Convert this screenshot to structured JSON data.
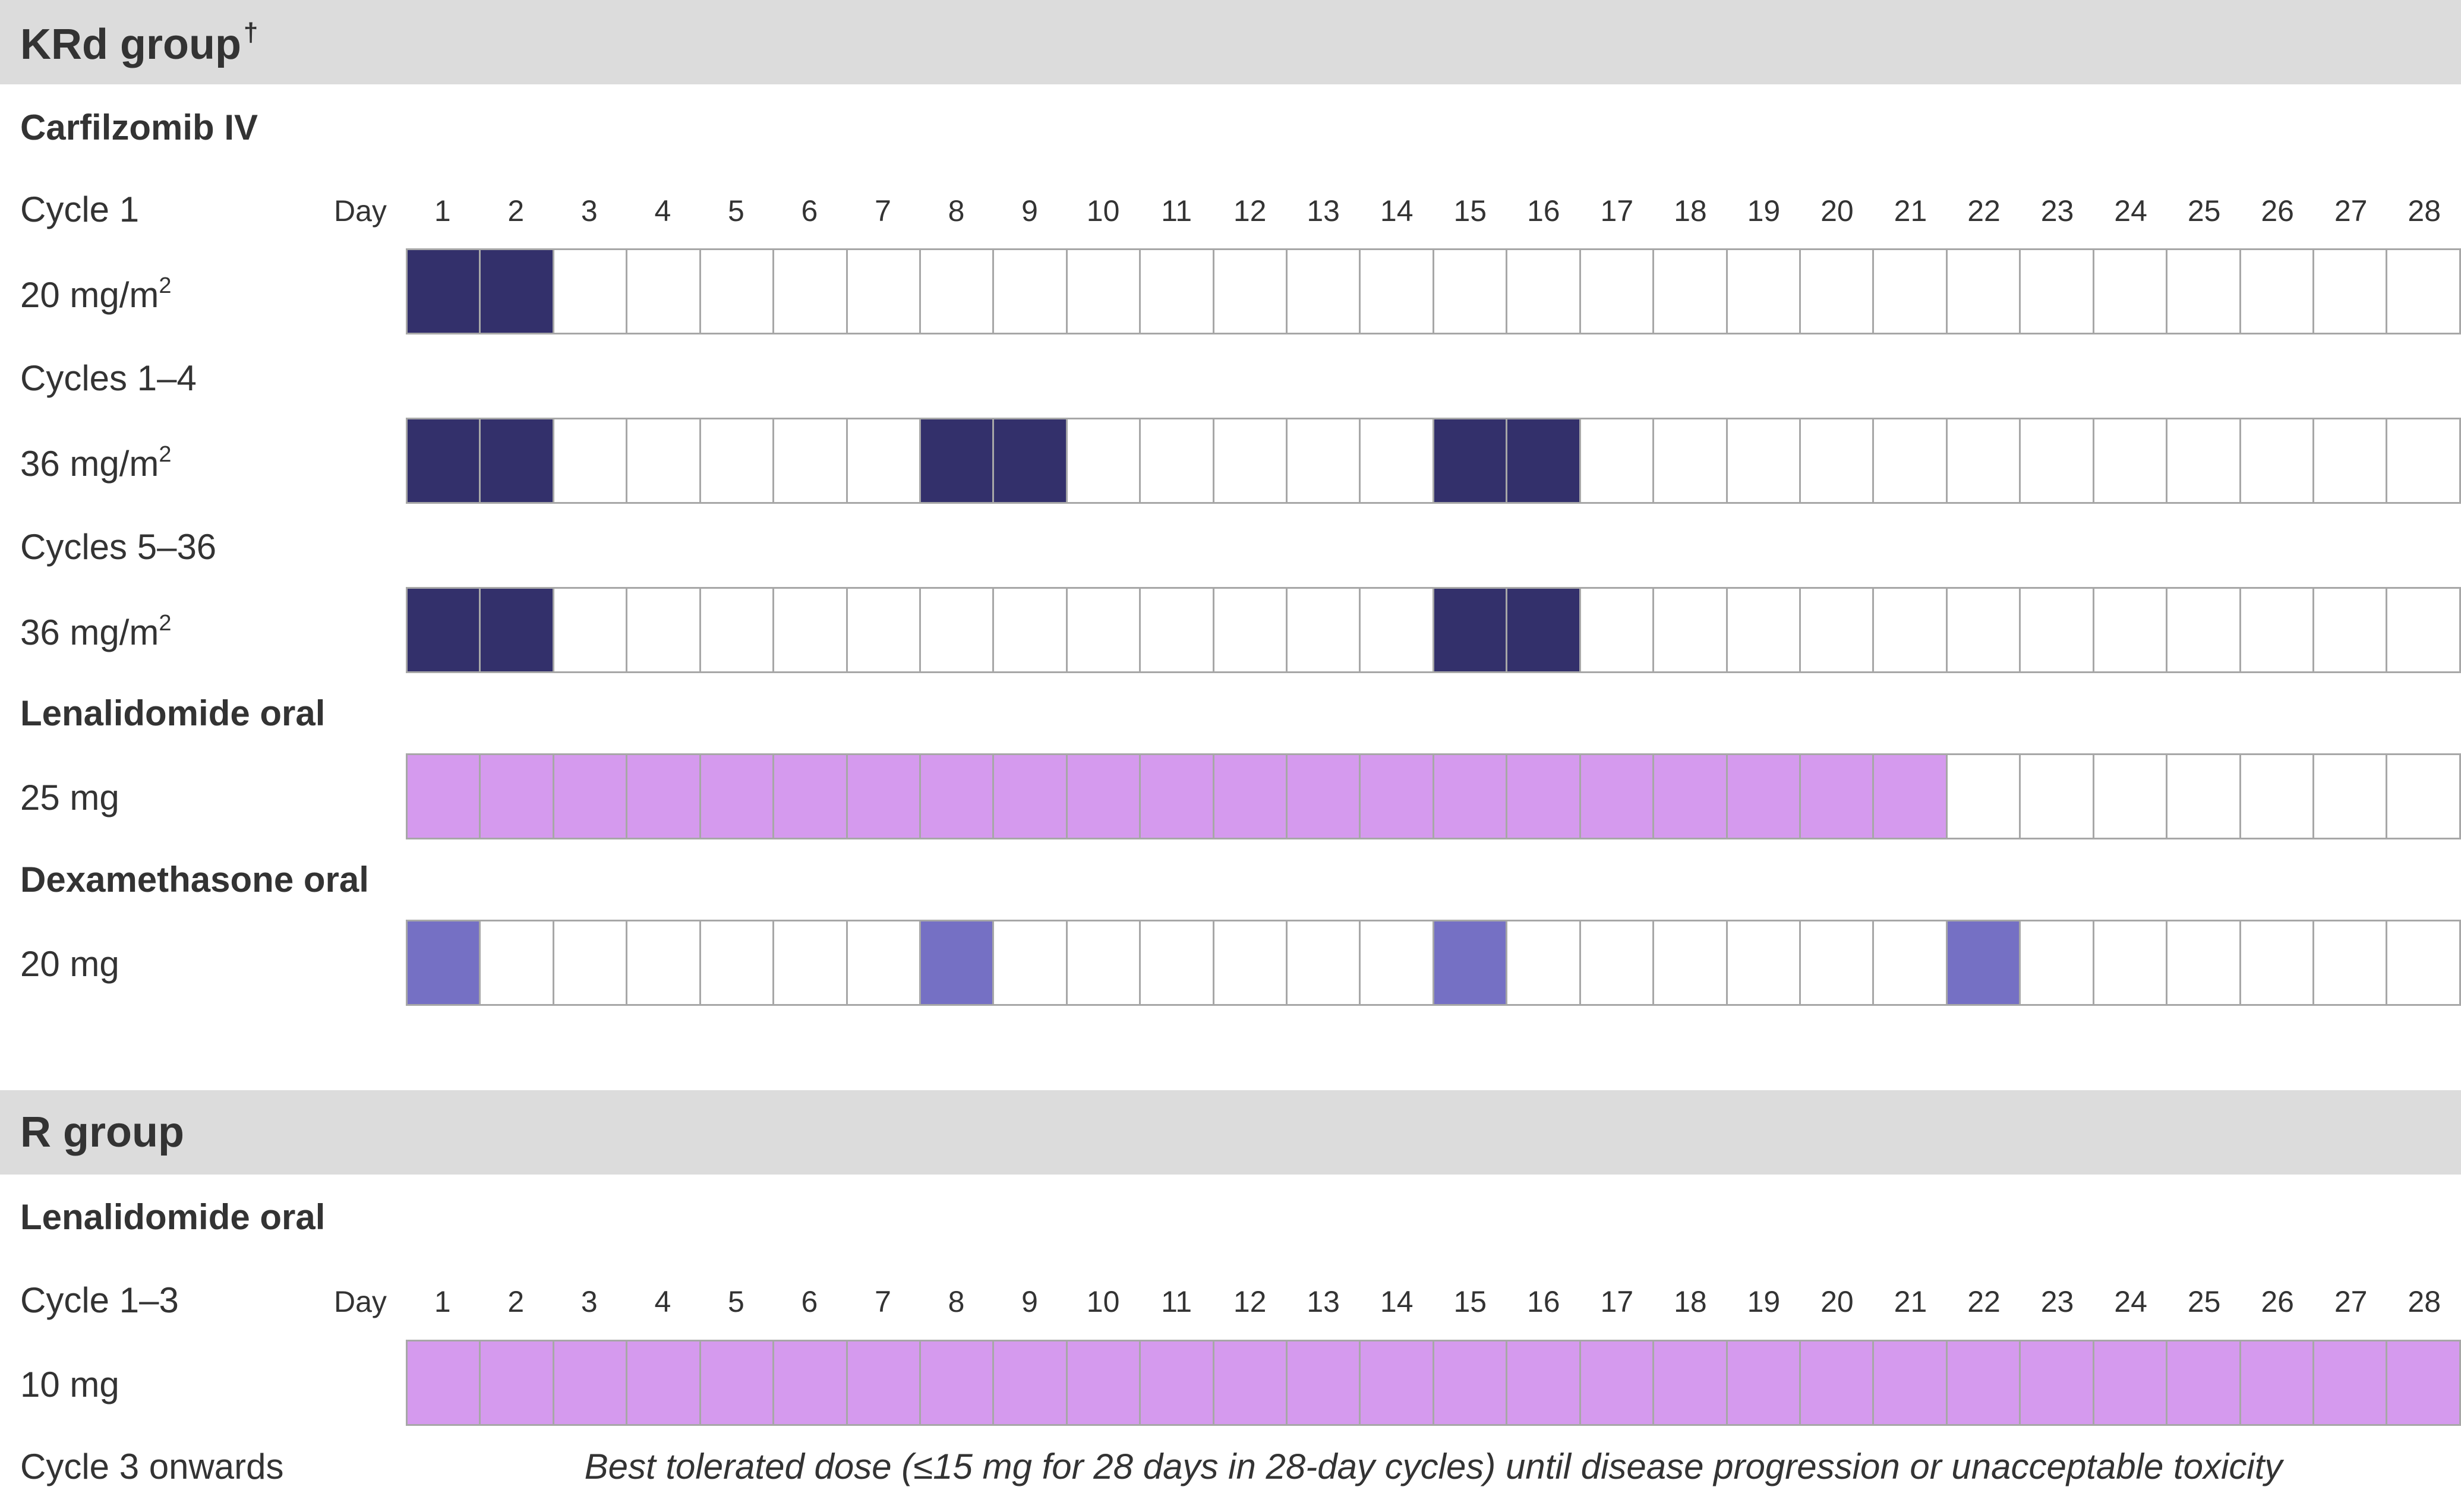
{
  "colors": {
    "band": "#dcdcdc",
    "text": "#333333",
    "carfilzomib": "#33306b",
    "lenalidomide": "#d59aee",
    "dexamethasone": "#7570c4",
    "empty": "#ffffff",
    "border": "#a7a7a7"
  },
  "day_label": "Day",
  "krd": {
    "title": "KRd group",
    "title_mark": "†",
    "carfilzomib": {
      "heading": "Carfilzomib IV",
      "cycle1": {
        "cycle": "Cycle 1",
        "dose": "20 mg/m",
        "sup": "2",
        "days": [
          1,
          2
        ]
      },
      "cycles1_4": {
        "cycle": "Cycles 1–4",
        "dose": "36 mg/m",
        "sup": "2",
        "days": [
          1,
          2,
          8,
          9,
          15,
          16
        ]
      },
      "cycles5_36": {
        "cycle": "Cycles 5–36",
        "dose": "36 mg/m",
        "sup": "2",
        "days": [
          1,
          2,
          15,
          16
        ]
      }
    },
    "lenalidomide": {
      "heading": "Lenalidomide oral",
      "dose": "25 mg",
      "days": [
        1,
        2,
        3,
        4,
        5,
        6,
        7,
        8,
        9,
        10,
        11,
        12,
        13,
        14,
        15,
        16,
        17,
        18,
        19,
        20,
        21
      ]
    },
    "dexamethasone": {
      "heading": "Dexamethasone oral",
      "dose": "20 mg",
      "days": [
        1,
        8,
        15,
        22
      ]
    }
  },
  "r": {
    "title": "R group",
    "lenalidomide": {
      "heading": "Lenalidomide oral",
      "cycle": "Cycle 1–3",
      "dose": "10 mg",
      "days": [
        1,
        2,
        3,
        4,
        5,
        6,
        7,
        8,
        9,
        10,
        11,
        12,
        13,
        14,
        15,
        16,
        17,
        18,
        19,
        20,
        21,
        22,
        23,
        24,
        25,
        26,
        27,
        28
      ]
    },
    "later": {
      "cycle": "Cycle 3 onwards",
      "note": "Best tolerated dose (≤15 mg for 28 days in 28-day cycles) until disease progression or unacceptable toxicity"
    }
  }
}
